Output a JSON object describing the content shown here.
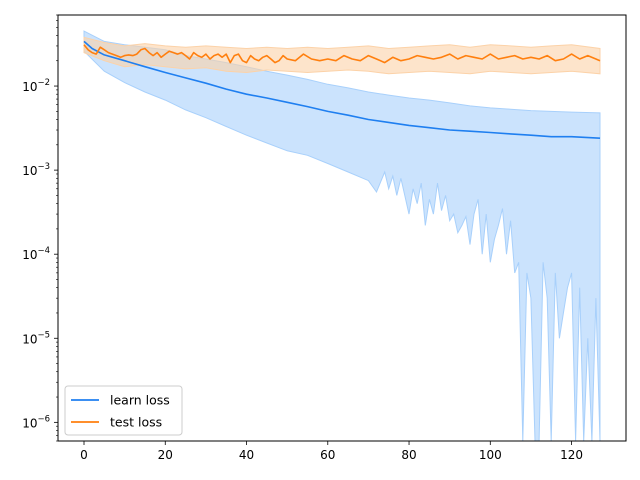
{
  "chart_data": {
    "type": "line",
    "title": "",
    "xlabel": "",
    "ylabel": "",
    "xlim": [
      -6.4,
      133.4
    ],
    "ylim": [
      6e-07,
      0.07
    ],
    "yscale": "log",
    "grid": false,
    "legend_position": "lower-left",
    "x_ticks": [
      0,
      20,
      40,
      60,
      80,
      100,
      120
    ],
    "y_ticks": [
      {
        "value": 1e-06,
        "base": "10",
        "exp": "−6"
      },
      {
        "value": 1e-05,
        "base": "10",
        "exp": "−5"
      },
      {
        "value": 0.0001,
        "base": "10",
        "exp": "−4"
      },
      {
        "value": 0.001,
        "base": "10",
        "exp": "−3"
      },
      {
        "value": 0.01,
        "base": "10",
        "exp": "−2"
      }
    ],
    "series": [
      {
        "name": "learn loss",
        "color": "#1f7ff0",
        "band_color": "#a8d0fb",
        "mean": [
          [
            0,
            0.034
          ],
          [
            2,
            0.028
          ],
          [
            5,
            0.0235
          ],
          [
            10,
            0.02
          ],
          [
            15,
            0.017
          ],
          [
            20,
            0.0145
          ],
          [
            25,
            0.0125
          ],
          [
            30,
            0.0108
          ],
          [
            35,
            0.0092
          ],
          [
            40,
            0.008
          ],
          [
            45,
            0.0072
          ],
          [
            50,
            0.0064
          ],
          [
            55,
            0.0057
          ],
          [
            60,
            0.005
          ],
          [
            65,
            0.0045
          ],
          [
            70,
            0.004
          ],
          [
            75,
            0.0037
          ],
          [
            80,
            0.0034
          ],
          [
            85,
            0.0032
          ],
          [
            90,
            0.003
          ],
          [
            95,
            0.0029
          ],
          [
            100,
            0.0028
          ],
          [
            105,
            0.0027
          ],
          [
            110,
            0.0026
          ],
          [
            115,
            0.0025
          ],
          [
            120,
            0.0025
          ],
          [
            127,
            0.0024
          ]
        ],
        "upper": [
          [
            0,
            0.045
          ],
          [
            5,
            0.034
          ],
          [
            10,
            0.031
          ],
          [
            15,
            0.029
          ],
          [
            20,
            0.027
          ],
          [
            25,
            0.023
          ],
          [
            30,
            0.021
          ],
          [
            35,
            0.019
          ],
          [
            40,
            0.017
          ],
          [
            45,
            0.015
          ],
          [
            50,
            0.0135
          ],
          [
            55,
            0.012
          ],
          [
            60,
            0.0105
          ],
          [
            65,
            0.0095
          ],
          [
            70,
            0.0085
          ],
          [
            75,
            0.0078
          ],
          [
            80,
            0.0072
          ],
          [
            85,
            0.0068
          ],
          [
            90,
            0.0063
          ],
          [
            95,
            0.0058
          ],
          [
            100,
            0.0055
          ],
          [
            105,
            0.0053
          ],
          [
            110,
            0.0051
          ],
          [
            115,
            0.005
          ],
          [
            120,
            0.0049
          ],
          [
            127,
            0.0048
          ]
        ],
        "lower": [
          [
            0,
            0.026
          ],
          [
            5,
            0.015
          ],
          [
            10,
            0.011
          ],
          [
            15,
            0.0085
          ],
          [
            20,
            0.0068
          ],
          [
            25,
            0.0052
          ],
          [
            30,
            0.0042
          ],
          [
            35,
            0.0033
          ],
          [
            40,
            0.0026
          ],
          [
            45,
            0.0021
          ],
          [
            50,
            0.0017
          ],
          [
            55,
            0.0015
          ],
          [
            60,
            0.0012
          ],
          [
            65,
            0.00095
          ],
          [
            70,
            0.00075
          ],
          [
            72,
            0.00055
          ],
          [
            74,
            0.00095
          ],
          [
            75,
            0.0006
          ],
          [
            76,
            0.00085
          ],
          [
            77,
            0.0005
          ],
          [
            78,
            0.0008
          ],
          [
            80,
            0.0003
          ],
          [
            81,
            0.0006
          ],
          [
            82,
            0.0004
          ],
          [
            83,
            0.0007
          ],
          [
            84,
            0.00022
          ],
          [
            85,
            0.00045
          ],
          [
            86,
            0.0003
          ],
          [
            87,
            0.0007
          ],
          [
            88,
            0.00033
          ],
          [
            89,
            0.0005
          ],
          [
            90,
            0.00025
          ],
          [
            91,
            0.0003
          ],
          [
            92,
            0.00018
          ],
          [
            93,
            0.00022
          ],
          [
            94,
            0.00028
          ],
          [
            95,
            0.00013
          ],
          [
            96,
            0.0003
          ],
          [
            97,
            0.00045
          ],
          [
            98,
            0.0001
          ],
          [
            99,
            0.0003
          ],
          [
            100,
            8e-05
          ],
          [
            101,
            0.00015
          ],
          [
            102,
            0.00022
          ],
          [
            103,
            0.00035
          ],
          [
            104,
            0.0001
          ],
          [
            105,
            0.00025
          ],
          [
            106,
            6e-05
          ],
          [
            107,
            8e-05
          ],
          [
            108,
            6e-07
          ],
          [
            109,
            6e-05
          ],
          [
            110,
            3e-05
          ],
          [
            111,
            6e-07
          ],
          [
            112,
            6e-07
          ],
          [
            113,
            8e-05
          ],
          [
            114,
            3e-05
          ],
          [
            115,
            6e-07
          ],
          [
            116,
            6e-05
          ],
          [
            117,
            1e-05
          ],
          [
            118,
            2e-05
          ],
          [
            119,
            4e-05
          ],
          [
            120,
            6e-05
          ],
          [
            121,
            6e-07
          ],
          [
            122,
            4e-05
          ],
          [
            123,
            6e-07
          ],
          [
            124,
            1e-05
          ],
          [
            125,
            6e-07
          ],
          [
            126,
            3e-05
          ],
          [
            127,
            6e-07
          ]
        ]
      },
      {
        "name": "test loss",
        "color": "#ff7f0e",
        "band_color": "#fcd2a8",
        "mean": [
          [
            0,
            0.031
          ],
          [
            1,
            0.027
          ],
          [
            2,
            0.025
          ],
          [
            3,
            0.024
          ],
          [
            4,
            0.029
          ],
          [
            5,
            0.027
          ],
          [
            6,
            0.025
          ],
          [
            7,
            0.024
          ],
          [
            8,
            0.023
          ],
          [
            9,
            0.022
          ],
          [
            10,
            0.023
          ],
          [
            11,
            0.0235
          ],
          [
            12,
            0.023
          ],
          [
            13,
            0.024
          ],
          [
            14,
            0.027
          ],
          [
            15,
            0.028
          ],
          [
            16,
            0.025
          ],
          [
            17,
            0.023
          ],
          [
            18,
            0.025
          ],
          [
            19,
            0.022
          ],
          [
            20,
            0.024
          ],
          [
            21,
            0.026
          ],
          [
            22,
            0.025
          ],
          [
            23,
            0.024
          ],
          [
            24,
            0.025
          ],
          [
            25,
            0.023
          ],
          [
            26,
            0.021
          ],
          [
            27,
            0.025
          ],
          [
            28,
            0.023
          ],
          [
            29,
            0.022
          ],
          [
            30,
            0.024
          ],
          [
            31,
            0.021
          ],
          [
            32,
            0.023
          ],
          [
            33,
            0.024
          ],
          [
            34,
            0.022
          ],
          [
            35,
            0.024
          ],
          [
            36,
            0.019
          ],
          [
            37,
            0.023
          ],
          [
            38,
            0.024
          ],
          [
            39,
            0.02
          ],
          [
            40,
            0.019
          ],
          [
            41,
            0.023
          ],
          [
            42,
            0.021
          ],
          [
            43,
            0.02
          ],
          [
            44,
            0.022
          ],
          [
            45,
            0.023
          ],
          [
            46,
            0.021
          ],
          [
            47,
            0.019
          ],
          [
            48,
            0.02
          ],
          [
            49,
            0.023
          ],
          [
            50,
            0.021
          ],
          [
            52,
            0.02
          ],
          [
            54,
            0.024
          ],
          [
            56,
            0.021
          ],
          [
            58,
            0.02
          ],
          [
            60,
            0.021
          ],
          [
            62,
            0.02
          ],
          [
            64,
            0.023
          ],
          [
            66,
            0.021
          ],
          [
            68,
            0.02
          ],
          [
            70,
            0.023
          ],
          [
            72,
            0.021
          ],
          [
            74,
            0.019
          ],
          [
            76,
            0.022
          ],
          [
            78,
            0.02
          ],
          [
            80,
            0.021
          ],
          [
            82,
            0.023
          ],
          [
            84,
            0.022
          ],
          [
            86,
            0.021
          ],
          [
            88,
            0.022
          ],
          [
            90,
            0.024
          ],
          [
            92,
            0.021
          ],
          [
            94,
            0.023
          ],
          [
            96,
            0.022
          ],
          [
            98,
            0.021
          ],
          [
            100,
            0.024
          ],
          [
            102,
            0.021
          ],
          [
            104,
            0.022
          ],
          [
            106,
            0.023
          ],
          [
            108,
            0.021
          ],
          [
            110,
            0.022
          ],
          [
            112,
            0.021
          ],
          [
            114,
            0.023
          ],
          [
            116,
            0.02
          ],
          [
            118,
            0.021
          ],
          [
            120,
            0.024
          ],
          [
            122,
            0.021
          ],
          [
            124,
            0.023
          ],
          [
            126,
            0.021
          ],
          [
            127,
            0.02
          ]
        ],
        "upper": [
          [
            0,
            0.038
          ],
          [
            5,
            0.033
          ],
          [
            10,
            0.03
          ],
          [
            15,
            0.032
          ],
          [
            20,
            0.03
          ],
          [
            25,
            0.029
          ],
          [
            30,
            0.03
          ],
          [
            35,
            0.029
          ],
          [
            40,
            0.028
          ],
          [
            45,
            0.029
          ],
          [
            50,
            0.028
          ],
          [
            55,
            0.029
          ],
          [
            60,
            0.028
          ],
          [
            65,
            0.029
          ],
          [
            70,
            0.03
          ],
          [
            75,
            0.028
          ],
          [
            80,
            0.029
          ],
          [
            85,
            0.03
          ],
          [
            90,
            0.031
          ],
          [
            95,
            0.029
          ],
          [
            100,
            0.031
          ],
          [
            105,
            0.03
          ],
          [
            110,
            0.029
          ],
          [
            115,
            0.03
          ],
          [
            120,
            0.031
          ],
          [
            127,
            0.028
          ]
        ],
        "lower": [
          [
            0,
            0.025
          ],
          [
            5,
            0.02
          ],
          [
            10,
            0.017
          ],
          [
            15,
            0.018
          ],
          [
            20,
            0.017
          ],
          [
            25,
            0.016
          ],
          [
            30,
            0.0165
          ],
          [
            35,
            0.015
          ],
          [
            40,
            0.0145
          ],
          [
            45,
            0.0155
          ],
          [
            50,
            0.015
          ],
          [
            55,
            0.0145
          ],
          [
            60,
            0.015
          ],
          [
            65,
            0.0155
          ],
          [
            70,
            0.015
          ],
          [
            75,
            0.014
          ],
          [
            80,
            0.0145
          ],
          [
            85,
            0.015
          ],
          [
            90,
            0.0145
          ],
          [
            95,
            0.014
          ],
          [
            100,
            0.015
          ],
          [
            105,
            0.0145
          ],
          [
            110,
            0.014
          ],
          [
            115,
            0.0145
          ],
          [
            120,
            0.015
          ],
          [
            127,
            0.014
          ]
        ]
      }
    ]
  }
}
